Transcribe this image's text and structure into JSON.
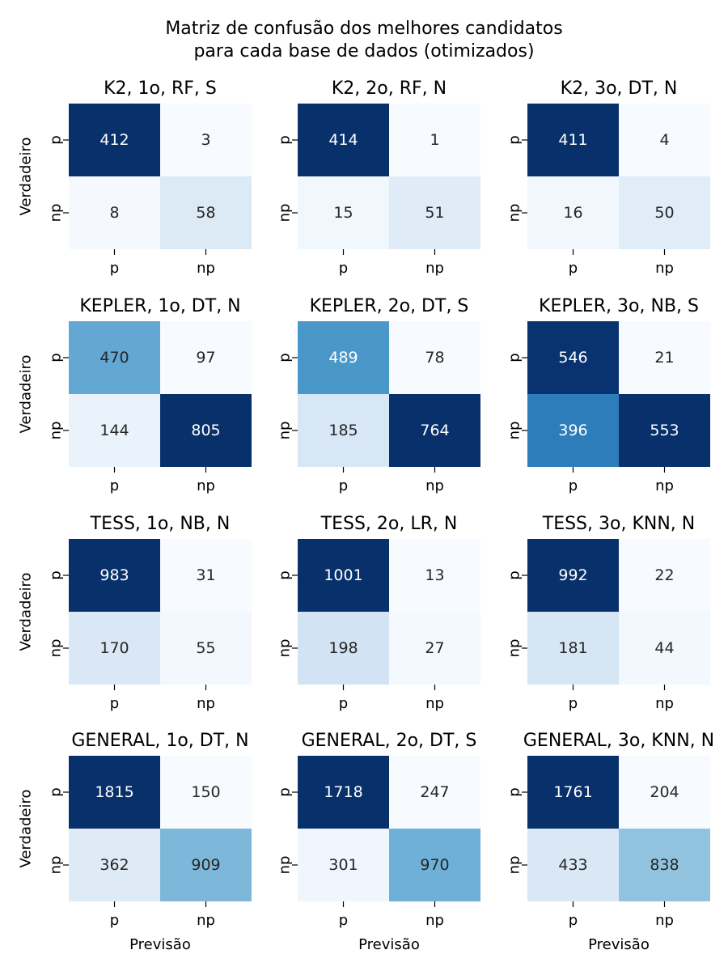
{
  "figure": {
    "title_line1": "Matriz de confusão dos melhores candidatos",
    "title_line2": "para cada base de dados (otimizados)"
  },
  "chart_data": {
    "type": "heatmap",
    "colormap": "Blues",
    "layout": "4 rows x 3 columns",
    "xlabel": "Previsão",
    "ylabel": "Verdadeiro",
    "row_labels": [
      "p",
      "np"
    ],
    "col_labels": [
      "p",
      "np"
    ],
    "panels": [
      {
        "title": "K2, 1o, RF, S",
        "values": [
          [
            412,
            3
          ],
          [
            8,
            58
          ]
        ]
      },
      {
        "title": "K2, 2o, RF, N",
        "values": [
          [
            414,
            1
          ],
          [
            15,
            51
          ]
        ]
      },
      {
        "title": "K2, 3o, DT, N",
        "values": [
          [
            411,
            4
          ],
          [
            16,
            50
          ]
        ]
      },
      {
        "title": "KEPLER, 1o, DT, N",
        "values": [
          [
            470,
            97
          ],
          [
            144,
            805
          ]
        ]
      },
      {
        "title": "KEPLER, 2o, DT, S",
        "values": [
          [
            489,
            78
          ],
          [
            185,
            764
          ]
        ]
      },
      {
        "title": "KEPLER, 3o, NB, S",
        "values": [
          [
            546,
            21
          ],
          [
            396,
            553
          ]
        ]
      },
      {
        "title": "TESS, 1o, NB, N",
        "values": [
          [
            983,
            31
          ],
          [
            170,
            55
          ]
        ]
      },
      {
        "title": "TESS, 2o, LR, N",
        "values": [
          [
            1001,
            13
          ],
          [
            198,
            27
          ]
        ]
      },
      {
        "title": "TESS, 3o, KNN, N",
        "values": [
          [
            992,
            22
          ],
          [
            181,
            44
          ]
        ]
      },
      {
        "title": "GENERAL, 1o, DT, N",
        "values": [
          [
            1815,
            150
          ],
          [
            362,
            909
          ]
        ]
      },
      {
        "title": "GENERAL, 2o, DT, S",
        "values": [
          [
            1718,
            247
          ],
          [
            301,
            970
          ]
        ]
      },
      {
        "title": "GENERAL, 3o, KNN, N",
        "values": [
          [
            1761,
            204
          ],
          [
            433,
            838
          ]
        ]
      }
    ]
  }
}
